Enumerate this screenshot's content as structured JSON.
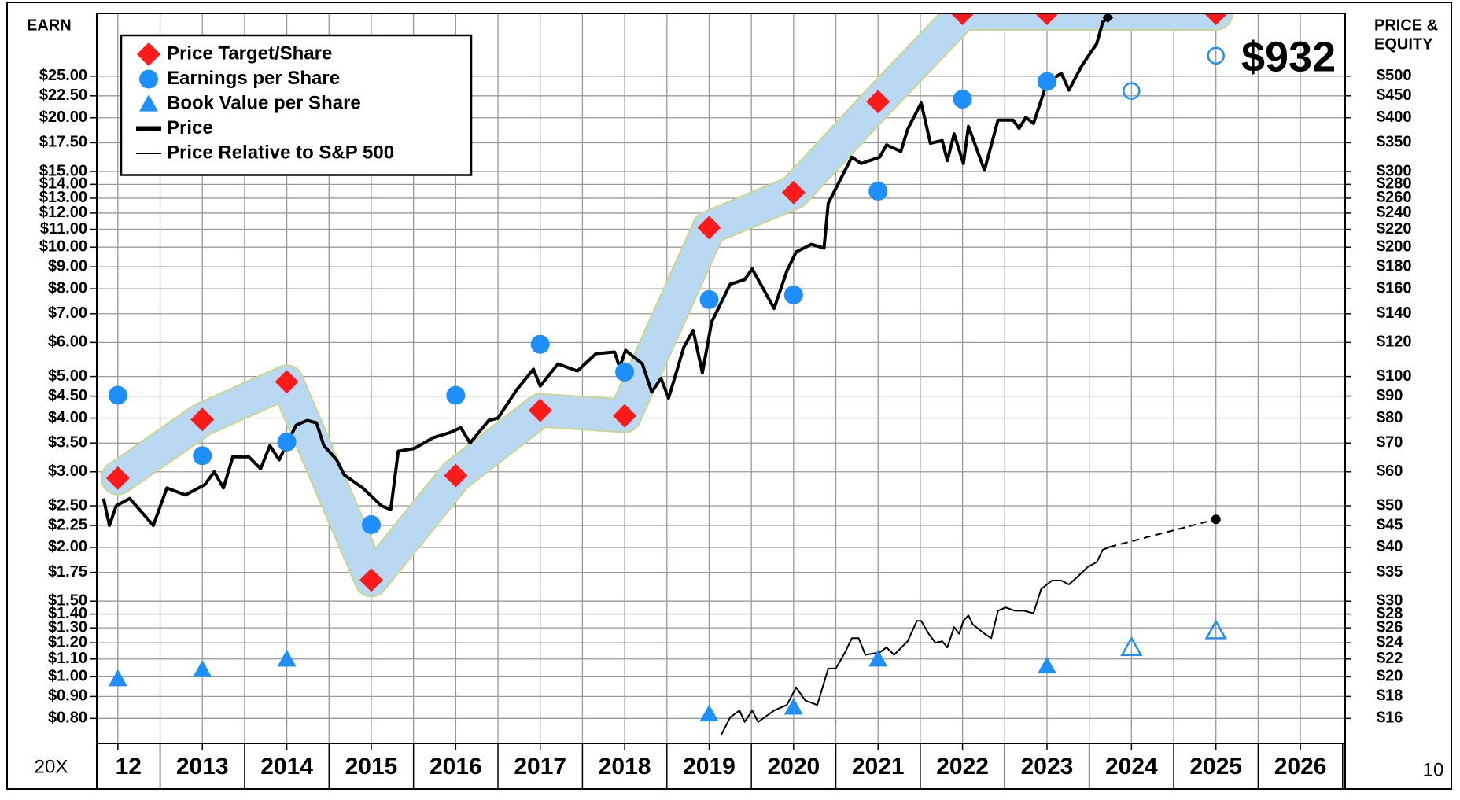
{
  "chart_data": {
    "type": "line",
    "y_label": "EARN",
    "y2_label": [
      "PRICE &",
      "EQUITY"
    ],
    "x_multiple_label": "20X",
    "corner_label": "10",
    "log_scale": true,
    "grid": true,
    "legend_position": "upper left",
    "xlim": [
      2011.75,
      2026.53
    ],
    "xticks": [
      {
        "value": 2012,
        "label": "12"
      },
      2013,
      2014,
      2015,
      2016,
      2017,
      2018,
      2019,
      2020,
      2021,
      2022,
      2023,
      2024,
      2025,
      2026
    ],
    "ylim": [
      0.7,
      35
    ],
    "yticks": [
      {
        "value": 0.8,
        "label": "$0.80"
      },
      {
        "value": 0.9,
        "label": "$0.90"
      },
      {
        "value": 1.0,
        "label": "$1.00"
      },
      {
        "value": 1.1,
        "label": "$1.10"
      },
      {
        "value": 1.2,
        "label": "$1.20"
      },
      {
        "value": 1.3,
        "label": "$1.30"
      },
      {
        "value": 1.4,
        "label": "$1.40"
      },
      {
        "value": 1.5,
        "label": "$1.50"
      },
      {
        "value": 1.75,
        "label": "$1.75"
      },
      {
        "value": 2.0,
        "label": "$2.00"
      },
      {
        "value": 2.25,
        "label": "$2.25"
      },
      {
        "value": 2.5,
        "label": "$2.50"
      },
      {
        "value": 3.0,
        "label": "$3.00"
      },
      {
        "value": 3.5,
        "label": "$3.50"
      },
      {
        "value": 4.0,
        "label": "$4.00"
      },
      {
        "value": 4.5,
        "label": "$4.50"
      },
      {
        "value": 5.0,
        "label": "$5.00"
      },
      {
        "value": 6,
        "label": "$6.00"
      },
      {
        "value": 7,
        "label": "$7.00"
      },
      {
        "value": 8,
        "label": "$8.00"
      },
      {
        "value": 9,
        "label": "$9.00"
      },
      {
        "value": 10,
        "label": "$10.00"
      },
      {
        "value": 11,
        "label": "$11.00"
      },
      {
        "value": 12,
        "label": "$12.00"
      },
      {
        "value": 13,
        "label": "$13.00"
      },
      {
        "value": 14,
        "label": "$14.00"
      },
      {
        "value": 15,
        "label": "$15.00"
      },
      {
        "value": 17.5,
        "label": "$17.50"
      },
      {
        "value": 20,
        "label": "$20.00"
      },
      {
        "value": 22.5,
        "label": "$22.50"
      },
      {
        "value": 25,
        "label": "$25.00"
      }
    ],
    "y2lim": [
      14,
      700
    ],
    "y2ticks": [
      {
        "value": 16,
        "label": "$16"
      },
      {
        "value": 18,
        "label": "$18"
      },
      {
        "value": 20,
        "label": "$20"
      },
      {
        "value": 22,
        "label": "$22"
      },
      {
        "value": 24,
        "label": "$24"
      },
      {
        "value": 26,
        "label": "$26"
      },
      {
        "value": 28,
        "label": "$28"
      },
      {
        "value": 30,
        "label": "$30"
      },
      {
        "value": 35,
        "label": "$35"
      },
      {
        "value": 40,
        "label": "$40"
      },
      {
        "value": 45,
        "label": "$45"
      },
      {
        "value": 50,
        "label": "$50"
      },
      {
        "value": 60,
        "label": "$60"
      },
      {
        "value": 70,
        "label": "$70"
      },
      {
        "value": 80,
        "label": "$80"
      },
      {
        "value": 90,
        "label": "$90"
      },
      {
        "value": 100,
        "label": "$100"
      },
      {
        "value": 120,
        "label": "$120"
      },
      {
        "value": 140,
        "label": "$140"
      },
      {
        "value": 160,
        "label": "$160"
      },
      {
        "value": 180,
        "label": "$180"
      },
      {
        "value": 200,
        "label": "$200"
      },
      {
        "value": 220,
        "label": "$220"
      },
      {
        "value": 240,
        "label": "$240"
      },
      {
        "value": 260,
        "label": "$260"
      },
      {
        "value": 280,
        "label": "$280"
      },
      {
        "value": 300,
        "label": "$300"
      },
      {
        "value": 350,
        "label": "$350"
      },
      {
        "value": 400,
        "label": "$400"
      },
      {
        "value": 450,
        "label": "$450"
      },
      {
        "value": 500,
        "label": "$500"
      }
    ],
    "annotation": {
      "text": "$932",
      "color": "#ff1a1a"
    },
    "series": [
      {
        "name": "Price Target/Share",
        "color": "#ff1a1a",
        "marker": "diamond",
        "band_color": "#b9d9f2",
        "band_edge": "#c9d78e",
        "x": [
          2012,
          2013,
          2014,
          2015,
          2016,
          2017,
          2018,
          2019,
          2020,
          2021,
          2022,
          2023,
          2025
        ],
        "values": [
          2.9,
          3.97,
          4.86,
          1.68,
          2.94,
          4.17,
          4.05,
          11.1,
          13.4,
          21.8,
          35,
          35,
          35
        ]
      },
      {
        "name": "Earnings per Share",
        "color": "#1e8fff",
        "marker": "circle",
        "x": [
          2012,
          2013,
          2014,
          2015,
          2016,
          2017,
          2018,
          2019,
          2020,
          2021,
          2022,
          2023
        ],
        "values": [
          4.52,
          3.27,
          3.52,
          2.26,
          4.52,
          5.94,
          5.12,
          7.55,
          7.74,
          13.5,
          22.1,
          24.3
        ],
        "projected": {
          "x": [
            2024,
            2025
          ],
          "values": [
            23.1,
            27.9
          ]
        }
      },
      {
        "name": "Book Value per Share",
        "color": "#1e8fff",
        "marker": "triangle",
        "x": [
          2012,
          2013,
          2014,
          2019,
          2020,
          2021,
          2023
        ],
        "values": [
          0.99,
          1.04,
          1.1,
          0.82,
          0.85,
          1.1,
          1.06
        ],
        "projected": {
          "x": [
            2024,
            2025
          ],
          "values": [
            1.17,
            1.28
          ]
        }
      },
      {
        "name": "Price",
        "color": "#000000",
        "marker": "thick-line",
        "axis": "y2",
        "x": [
          2011.83,
          2011.9,
          2011.98,
          2012.14,
          2012.42,
          2012.58,
          2012.8,
          2013.03,
          2013.14,
          2013.25,
          2013.36,
          2013.55,
          2013.69,
          2013.8,
          2013.91,
          2014.11,
          2014.24,
          2014.35,
          2014.44,
          2014.59,
          2014.68,
          2014.9,
          2015.12,
          2015.23,
          2015.32,
          2015.51,
          2015.73,
          2015.93,
          2016.06,
          2016.17,
          2016.39,
          2016.5,
          2016.72,
          2016.92,
          2017.0,
          2017.21,
          2017.44,
          2017.66,
          2017.88,
          2017.94,
          2018.01,
          2018.21,
          2018.32,
          2018.43,
          2018.52,
          2018.7,
          2018.81,
          2018.92,
          2019.03,
          2019.25,
          2019.42,
          2019.51,
          2019.77,
          2019.92,
          2020.03,
          2020.21,
          2020.36,
          2020.41,
          2020.69,
          2020.8,
          2021.02,
          2021.1,
          2021.27,
          2021.35,
          2021.51,
          2021.62,
          2021.76,
          2021.82,
          2021.9,
          2022.01,
          2022.07,
          2022.26,
          2022.42,
          2022.6,
          2022.67,
          2022.75,
          2022.84,
          2023.0,
          2023.17,
          2023.26,
          2023.41,
          2023.59,
          2023.66,
          2023.72
        ],
        "values": [
          52,
          45,
          50,
          52,
          45,
          55,
          53,
          56,
          60,
          55,
          65,
          65,
          61,
          69,
          64,
          77,
          79,
          78,
          69,
          64,
          59,
          55,
          50,
          49,
          67,
          68,
          72,
          74,
          76,
          70,
          79,
          80,
          93,
          104,
          95,
          107,
          103,
          113,
          114,
          105,
          115,
          107,
          92,
          99,
          89,
          117,
          128,
          102,
          134,
          164,
          168,
          178,
          144,
          176,
          195,
          203,
          199,
          253,
          324,
          313,
          324,
          346,
          334,
          376,
          433,
          349,
          354,
          318,
          367,
          313,
          382,
          302,
          395,
          395,
          378,
          401,
          388,
          483,
          508,
          464,
          528,
          596,
          668,
          685
        ]
      },
      {
        "name": "Price Relative to S&P 500",
        "color": "#000000",
        "marker": "thin-line",
        "axis": "y2",
        "x": [
          2019.14,
          2019.25,
          2019.36,
          2019.42,
          2019.51,
          2019.58,
          2019.77,
          2019.92,
          2020.03,
          2020.14,
          2020.28,
          2020.41,
          2020.5,
          2020.61,
          2020.69,
          2020.77,
          2020.85,
          2021.02,
          2021.1,
          2021.19,
          2021.35,
          2021.46,
          2021.51,
          2021.6,
          2021.68,
          2021.76,
          2021.82,
          2021.9,
          2021.96,
          2022.01,
          2022.07,
          2022.12,
          2022.26,
          2022.34,
          2022.42,
          2022.51,
          2022.62,
          2022.73,
          2022.84,
          2022.93,
          2023.06,
          2023.17,
          2023.26,
          2023.37,
          2023.48,
          2023.59,
          2023.66,
          2023.74
        ],
        "values": [
          14.6,
          16.1,
          16.7,
          15.7,
          16.7,
          15.7,
          16.7,
          17.2,
          18.9,
          17.6,
          17.2,
          20.9,
          20.9,
          22.8,
          24.6,
          24.6,
          22.5,
          22.8,
          23.4,
          22.5,
          24.2,
          27,
          27,
          25.2,
          24,
          24.2,
          23.4,
          26.1,
          25.2,
          27,
          27.8,
          26.5,
          25.2,
          24.6,
          28.5,
          29,
          28.5,
          28.5,
          28.1,
          32,
          33.5,
          33.5,
          32.8,
          34.3,
          36,
          37,
          39.5,
          40.1
        ],
        "projected": {
          "x": [
            2023.74,
            2025
          ],
          "values": [
            40.1,
            46.5
          ]
        }
      }
    ]
  }
}
